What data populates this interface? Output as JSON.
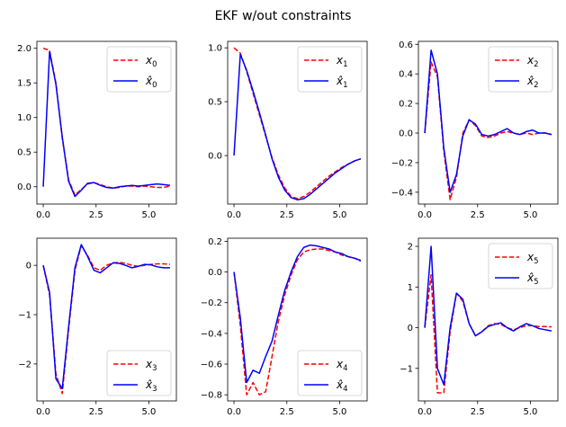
{
  "figure": {
    "suptitle": "EKF w/out constraints"
  },
  "chart_data": [
    {
      "type": "line",
      "xlim": [
        -0.3,
        6.3
      ],
      "ylim": [
        -0.25,
        2.1
      ],
      "xticks": [
        0,
        2.5,
        5.0
      ],
      "xtick_labels": [
        "0.0",
        "2.5",
        "5.0"
      ],
      "yticks": [
        0,
        0.5,
        1.0,
        1.5,
        2.0
      ],
      "ytick_labels": [
        "0.0",
        "0.5",
        "1.0",
        "1.5",
        "2.0"
      ],
      "legend": {
        "loc": "upper-right",
        "labels": [
          "x0",
          "x̂0"
        ]
      },
      "series": [
        {
          "name": "x0",
          "style": "dashed",
          "color": "#ff0000",
          "x": [
            0,
            0.3,
            0.6,
            0.9,
            1.2,
            1.5,
            1.8,
            2.1,
            2.4,
            2.7,
            3.0,
            3.3,
            3.6,
            3.9,
            4.2,
            4.5,
            4.8,
            5.1,
            5.4,
            5.7,
            6.0
          ],
          "y": [
            2.0,
            1.97,
            1.5,
            0.7,
            0.1,
            -0.12,
            -0.04,
            0.04,
            0.06,
            0.03,
            0.0,
            -0.02,
            -0.01,
            0.01,
            0.01,
            0.0,
            0.01,
            0.0,
            -0.01,
            -0.01,
            0.01
          ]
        },
        {
          "name": "x̂0",
          "style": "solid",
          "color": "#0000ff",
          "x": [
            0,
            0.3,
            0.6,
            0.9,
            1.2,
            1.5,
            1.8,
            2.1,
            2.4,
            2.7,
            3.0,
            3.3,
            3.6,
            3.9,
            4.2,
            4.5,
            4.8,
            5.1,
            5.4,
            5.7,
            6.0
          ],
          "y": [
            0.0,
            1.95,
            1.48,
            0.72,
            0.08,
            -0.14,
            -0.05,
            0.05,
            0.06,
            0.02,
            -0.01,
            -0.02,
            0.0,
            0.01,
            0.02,
            0.01,
            0.02,
            0.03,
            0.04,
            0.03,
            0.02
          ]
        }
      ]
    },
    {
      "type": "line",
      "xlim": [
        -0.3,
        6.3
      ],
      "ylim": [
        -0.45,
        1.06
      ],
      "xticks": [
        0,
        2.5,
        5.0
      ],
      "xtick_labels": [
        "0.0",
        "2.5",
        "5.0"
      ],
      "yticks": [
        0,
        0.5,
        1.0
      ],
      "ytick_labels": [
        "0.0",
        "0.5",
        "1.0"
      ],
      "legend": {
        "loc": "upper-right",
        "labels": [
          "x1",
          "x̂1"
        ]
      },
      "series": [
        {
          "name": "x1",
          "style": "dashed",
          "color": "#ff0000",
          "x": [
            0,
            0.3,
            0.6,
            0.9,
            1.2,
            1.5,
            1.8,
            2.1,
            2.4,
            2.7,
            3.0,
            3.3,
            3.6,
            3.9,
            4.2,
            4.5,
            4.8,
            5.1,
            5.4,
            5.7,
            6.0
          ],
          "y": [
            1.0,
            0.95,
            0.78,
            0.58,
            0.38,
            0.18,
            -0.02,
            -0.18,
            -0.3,
            -0.38,
            -0.4,
            -0.38,
            -0.34,
            -0.29,
            -0.24,
            -0.19,
            -0.15,
            -0.11,
            -0.08,
            -0.05,
            -0.03
          ]
        },
        {
          "name": "x̂1",
          "style": "solid",
          "color": "#0000ff",
          "x": [
            0,
            0.3,
            0.6,
            0.9,
            1.2,
            1.5,
            1.8,
            2.1,
            2.4,
            2.7,
            3.0,
            3.3,
            3.6,
            3.9,
            4.2,
            4.5,
            4.8,
            5.1,
            5.4,
            5.7,
            6.0
          ],
          "y": [
            0.0,
            0.94,
            0.79,
            0.6,
            0.4,
            0.19,
            -0.03,
            -0.2,
            -0.32,
            -0.39,
            -0.41,
            -0.4,
            -0.36,
            -0.31,
            -0.26,
            -0.21,
            -0.16,
            -0.12,
            -0.08,
            -0.05,
            -0.03
          ]
        }
      ]
    },
    {
      "type": "line",
      "xlim": [
        -0.3,
        6.3
      ],
      "ylim": [
        -0.48,
        0.62
      ],
      "xticks": [
        0,
        2.5,
        5.0
      ],
      "xtick_labels": [
        "0.0",
        "2.5",
        "5.0"
      ],
      "yticks": [
        -0.4,
        -0.2,
        0.0,
        0.2,
        0.4,
        0.6
      ],
      "ytick_labels": [
        "−0.4",
        "−0.2",
        "0.0",
        "0.2",
        "0.4",
        "0.6"
      ],
      "legend": {
        "loc": "upper-right",
        "labels": [
          "x2",
          "x̂2"
        ]
      },
      "series": [
        {
          "name": "x2",
          "style": "dashed",
          "color": "#ff0000",
          "x": [
            0,
            0.3,
            0.6,
            0.9,
            1.2,
            1.5,
            1.8,
            2.1,
            2.4,
            2.7,
            3.0,
            3.3,
            3.6,
            3.9,
            4.2,
            4.5,
            4.8,
            5.1,
            5.4,
            5.7,
            6.0
          ],
          "y": [
            0.0,
            0.48,
            0.38,
            -0.12,
            -0.45,
            -0.3,
            0.0,
            0.09,
            0.05,
            -0.02,
            -0.03,
            -0.02,
            0.0,
            0.01,
            0.0,
            -0.01,
            0.0,
            -0.01,
            0.0,
            0.0,
            -0.01
          ]
        },
        {
          "name": "x̂2",
          "style": "solid",
          "color": "#0000ff",
          "x": [
            0,
            0.3,
            0.6,
            0.9,
            1.2,
            1.5,
            1.8,
            2.1,
            2.4,
            2.7,
            3.0,
            3.3,
            3.6,
            3.9,
            4.2,
            4.5,
            4.8,
            5.1,
            5.4,
            5.7,
            6.0
          ],
          "y": [
            0.0,
            0.56,
            0.4,
            -0.1,
            -0.4,
            -0.28,
            -0.02,
            0.09,
            0.06,
            -0.01,
            -0.02,
            -0.01,
            0.01,
            0.03,
            0.0,
            -0.01,
            0.01,
            0.02,
            0.0,
            0.0,
            -0.01
          ]
        }
      ]
    },
    {
      "type": "line",
      "xlim": [
        -0.3,
        6.3
      ],
      "ylim": [
        -2.75,
        0.55
      ],
      "xticks": [
        0,
        2.5,
        5.0
      ],
      "xtick_labels": [
        "0.0",
        "2.5",
        "5.0"
      ],
      "yticks": [
        -2,
        -1,
        0
      ],
      "ytick_labels": [
        "−2",
        "−1",
        "0"
      ],
      "legend": {
        "loc": "lower-right",
        "labels": [
          "x3",
          "x̂3"
        ]
      },
      "series": [
        {
          "name": "x3",
          "style": "dashed",
          "color": "#ff0000",
          "x": [
            0,
            0.3,
            0.6,
            0.9,
            1.2,
            1.5,
            1.8,
            2.1,
            2.4,
            2.7,
            3.0,
            3.3,
            3.6,
            3.9,
            4.2,
            4.5,
            4.8,
            5.1,
            5.4,
            5.7,
            6.0
          ],
          "y": [
            0.0,
            -0.6,
            -2.2,
            -2.6,
            -1.3,
            -0.1,
            0.4,
            0.2,
            -0.05,
            -0.1,
            0.0,
            0.05,
            0.06,
            0.04,
            0.0,
            -0.02,
            0.0,
            0.02,
            0.03,
            0.03,
            0.02
          ]
        },
        {
          "name": "x̂3",
          "style": "solid",
          "color": "#0000ff",
          "x": [
            0,
            0.3,
            0.6,
            0.9,
            1.2,
            1.5,
            1.8,
            2.1,
            2.4,
            2.7,
            3.0,
            3.3,
            3.6,
            3.9,
            4.2,
            4.5,
            4.8,
            5.1,
            5.4,
            5.7,
            6.0
          ],
          "y": [
            0.0,
            -0.55,
            -2.3,
            -2.5,
            -1.25,
            -0.05,
            0.42,
            0.18,
            -0.1,
            -0.15,
            -0.05,
            0.05,
            0.04,
            0.0,
            -0.05,
            -0.02,
            0.02,
            0.01,
            -0.03,
            -0.05,
            -0.05
          ]
        }
      ]
    },
    {
      "type": "line",
      "xlim": [
        -0.3,
        6.3
      ],
      "ylim": [
        -0.84,
        0.22
      ],
      "xticks": [
        0,
        2.5,
        5.0
      ],
      "xtick_labels": [
        "0.0",
        "2.5",
        "5.0"
      ],
      "yticks": [
        -0.8,
        -0.6,
        -0.4,
        -0.2,
        0.0,
        0.2
      ],
      "ytick_labels": [
        "−0.8",
        "−0.6",
        "−0.4",
        "−0.2",
        "0.0",
        "0.2"
      ],
      "legend": {
        "loc": "lower-right",
        "labels": [
          "x4",
          "x̂4"
        ]
      },
      "series": [
        {
          "name": "x4",
          "style": "dashed",
          "color": "#ff0000",
          "x": [
            0,
            0.3,
            0.6,
            0.9,
            1.2,
            1.5,
            1.8,
            2.1,
            2.4,
            2.7,
            3.0,
            3.3,
            3.6,
            3.9,
            4.2,
            4.5,
            4.8,
            5.1,
            5.4,
            5.7,
            6.0
          ],
          "y": [
            0.0,
            -0.35,
            -0.8,
            -0.72,
            -0.8,
            -0.78,
            -0.55,
            -0.32,
            -0.15,
            -0.02,
            0.08,
            0.13,
            0.145,
            0.15,
            0.15,
            0.14,
            0.13,
            0.11,
            0.1,
            0.09,
            0.07
          ]
        },
        {
          "name": "x̂4",
          "style": "solid",
          "color": "#0000ff",
          "x": [
            0,
            0.3,
            0.6,
            0.9,
            1.2,
            1.5,
            1.8,
            2.1,
            2.4,
            2.7,
            3.0,
            3.3,
            3.6,
            3.9,
            4.2,
            4.5,
            4.8,
            5.1,
            5.4,
            5.7,
            6.0
          ],
          "y": [
            0.0,
            -0.3,
            -0.72,
            -0.64,
            -0.66,
            -0.55,
            -0.45,
            -0.28,
            -0.12,
            0.0,
            0.1,
            0.16,
            0.175,
            0.17,
            0.16,
            0.15,
            0.13,
            0.12,
            0.1,
            0.09,
            0.075
          ]
        }
      ]
    },
    {
      "type": "line",
      "xlim": [
        -0.3,
        6.3
      ],
      "ylim": [
        -1.8,
        2.2
      ],
      "xticks": [
        0,
        2.5,
        5.0
      ],
      "xtick_labels": [
        "0.0",
        "2.5",
        "5.0"
      ],
      "yticks": [
        -1,
        0,
        1,
        2
      ],
      "ytick_labels": [
        "−1",
        "0",
        "1",
        "2"
      ],
      "legend": {
        "loc": "upper-right",
        "labels": [
          "x5",
          "x̂5"
        ]
      },
      "series": [
        {
          "name": "x5",
          "style": "dashed",
          "color": "#ff0000",
          "x": [
            0,
            0.3,
            0.6,
            0.9,
            1.2,
            1.5,
            1.8,
            2.1,
            2.4,
            2.7,
            3.0,
            3.3,
            3.6,
            3.9,
            4.2,
            4.5,
            4.8,
            5.1,
            5.4,
            5.7,
            6.0
          ],
          "y": [
            0.0,
            1.3,
            -1.6,
            -1.6,
            -0.1,
            0.85,
            0.65,
            0.1,
            -0.2,
            -0.1,
            0.05,
            0.1,
            0.08,
            0.0,
            -0.05,
            0.0,
            0.05,
            0.05,
            0.03,
            0.03,
            0.02
          ]
        },
        {
          "name": "x̂5",
          "style": "solid",
          "color": "#0000ff",
          "x": [
            0,
            0.3,
            0.6,
            0.9,
            1.2,
            1.5,
            1.8,
            2.1,
            2.4,
            2.7,
            3.0,
            3.3,
            3.6,
            3.9,
            4.2,
            4.5,
            4.8,
            5.1,
            5.4,
            5.7,
            6.0
          ],
          "y": [
            0.0,
            2.0,
            -1.0,
            -1.4,
            0.0,
            0.85,
            0.7,
            0.1,
            -0.2,
            -0.1,
            0.03,
            0.08,
            0.12,
            0.0,
            -0.08,
            0.02,
            0.1,
            0.05,
            -0.02,
            -0.05,
            -0.08
          ]
        }
      ]
    }
  ]
}
